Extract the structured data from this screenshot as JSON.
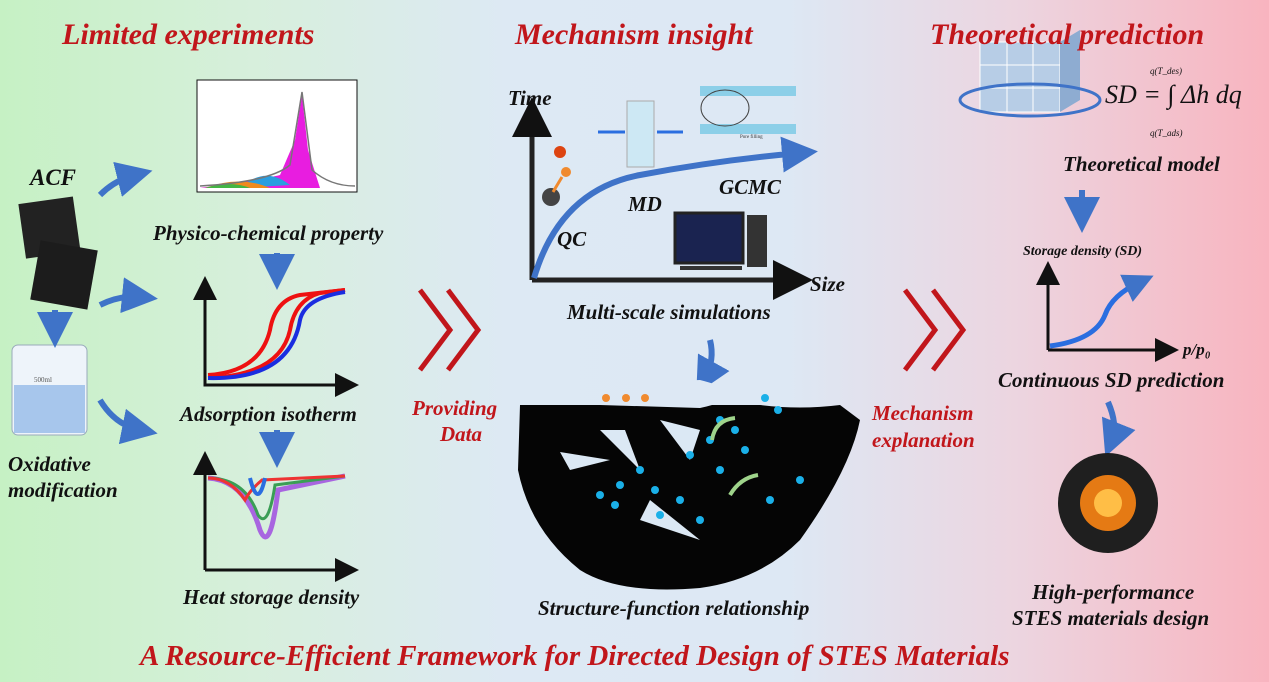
{
  "sections": {
    "left": "Limited experiments",
    "middle": "Mechanism insight",
    "right": "Theoretical prediction"
  },
  "left": {
    "acf": "ACF",
    "beaker": "500ml",
    "oxidative": [
      "Oxidative",
      "modification"
    ],
    "physico": "Physico-chemical property",
    "isotherm": "Adsorption isotherm",
    "heat": "Heat storage density"
  },
  "arrows": {
    "providing": [
      "Providing",
      "Data"
    ],
    "mechanism": [
      "Mechanism",
      "explanation"
    ]
  },
  "middle": {
    "time": "Time",
    "size": "Size",
    "qc": "QC",
    "md": "MD",
    "gcmc": "GCMC",
    "pore_filling": "Pore filling",
    "multiscale": "Multi-scale simulations",
    "structure": "Structure-function relationship"
  },
  "right": {
    "formula": "SD = ∫ Δh dq",
    "formula_upper": "q(T_des)",
    "formula_lower": "q(T_ads)",
    "model": "Theoretical model",
    "sd_axis": "Storage density (SD)",
    "pp0": "p/p₀",
    "continuous": "Continuous SD prediction",
    "design": [
      "High-performance",
      "STES materials design"
    ]
  },
  "footer": "A  Resource-Efficient Framework for Directed Design of STES Materials",
  "colors": {
    "title_red": "#c1161b",
    "arrow_blue": "#3f73c8",
    "chevron_red": "#c1161b"
  }
}
